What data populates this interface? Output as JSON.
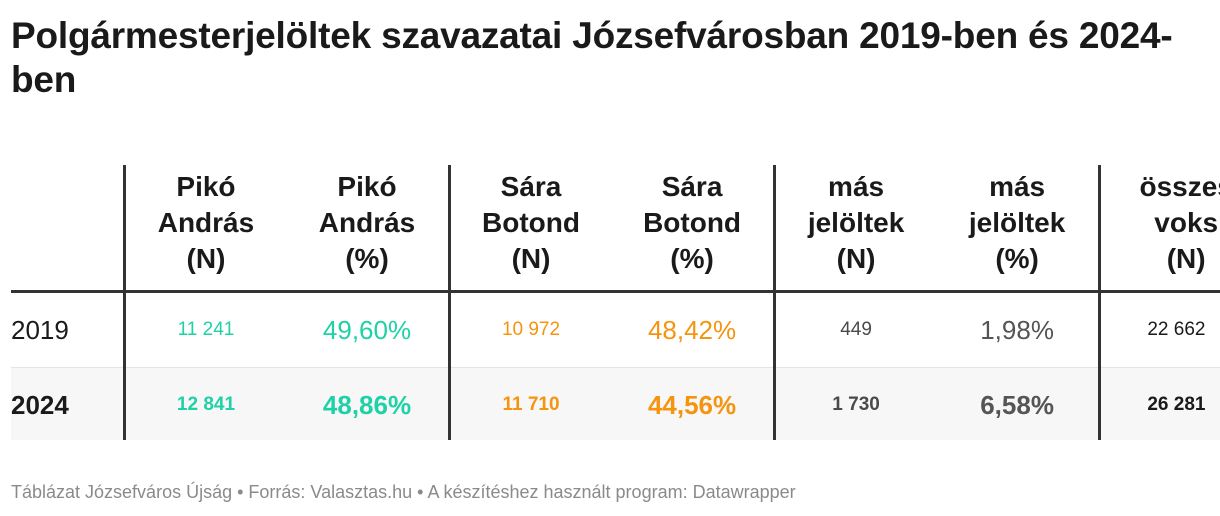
{
  "title": "Polgármesterjelöltek szavazatai Józsefvárosban 2019-ben és 2024-ben",
  "columns": [
    {
      "lines": [
        "Pikó",
        "András",
        "(N)"
      ]
    },
    {
      "lines": [
        "Pikó",
        "András",
        "(%)"
      ]
    },
    {
      "lines": [
        "Sára",
        "Botond",
        "(N)"
      ]
    },
    {
      "lines": [
        "Sára",
        "Botond",
        "(%)"
      ]
    },
    {
      "lines": [
        "más",
        "jelöltek",
        "(N)"
      ]
    },
    {
      "lines": [
        "más",
        "jelöltek",
        "(%)"
      ]
    },
    {
      "lines": [
        "összes",
        "voks",
        "(N)"
      ]
    }
  ],
  "rows": [
    {
      "year": "2019",
      "piko_n": "11 241",
      "piko_p": "49,60%",
      "sara_n": "10 972",
      "sara_p": "48,42%",
      "mas_n": "449",
      "mas_p": "1,98%",
      "total": "22 662"
    },
    {
      "year": "2024",
      "piko_n": "12 841",
      "piko_p": "48,86%",
      "sara_n": "11 710",
      "sara_p": "44,56%",
      "mas_n": "1 730",
      "mas_p": "6,58%",
      "total": "26 281"
    }
  ],
  "footer": "Táblázat Józsefváros Újság • Forrás: Valasztas.hu • A készítéshez használt program: Datawrapper",
  "colors": {
    "piko": "#1fd1a6",
    "sara": "#f5940f",
    "other": "#555555",
    "rule": "#333333",
    "row_highlight": "#f7f7f7"
  },
  "chart_data": {
    "type": "table",
    "title": "Polgármesterjelöltek szavazatai Józsefvárosban 2019-ben és 2024-ben",
    "columns": [
      "",
      "Pikó András (N)",
      "Pikó András (%)",
      "Sára Botond (N)",
      "Sára Botond (%)",
      "más jelöltek (N)",
      "más jelöltek (%)",
      "összes voks (N)"
    ],
    "rows": [
      [
        "2019",
        11241,
        49.6,
        10972,
        48.42,
        449,
        1.98,
        22662
      ],
      [
        "2024",
        12841,
        48.86,
        11710,
        44.56,
        1730,
        6.58,
        26281
      ]
    ]
  }
}
